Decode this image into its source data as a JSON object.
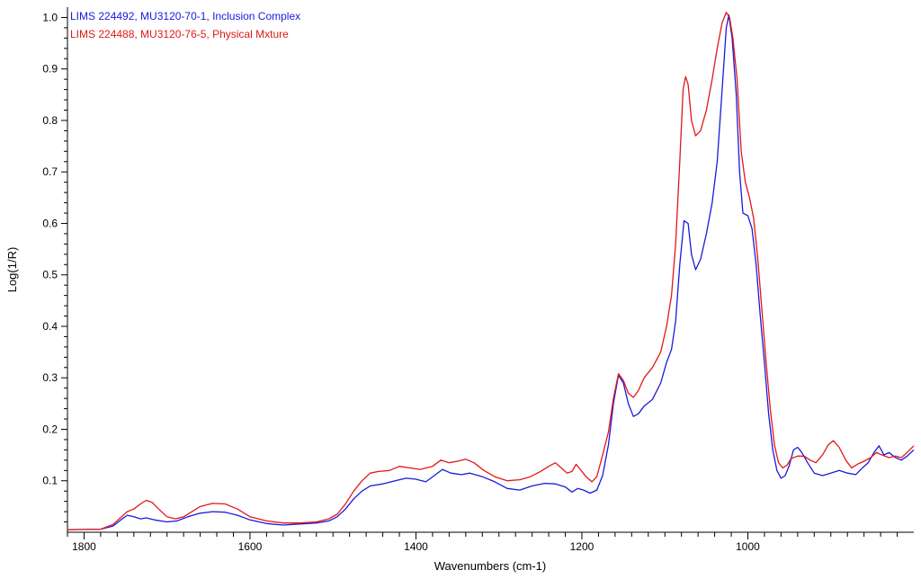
{
  "chart_data": {
    "type": "line",
    "title": "",
    "xlabel": "Wavenumbers (cm-1)",
    "ylabel": "Log(1/R)",
    "xlim": [
      1820,
      800
    ],
    "ylim": [
      0.0,
      1.02
    ],
    "x_reversed": true,
    "x_ticks": [
      1800,
      1600,
      1400,
      1200,
      1000
    ],
    "y_ticks": [
      0.1,
      0.2,
      0.3,
      0.4,
      0.5,
      0.6,
      0.7,
      0.8,
      0.9,
      1.0
    ],
    "x_tick_labels": [
      "1800",
      "1600",
      "1400",
      "1200",
      "1000"
    ],
    "y_tick_labels": [
      "0.1",
      "0.2",
      "0.3",
      "0.4",
      "0.5",
      "0.6",
      "0.7",
      "0.8",
      "0.9",
      "1.0"
    ],
    "grid": false,
    "legend_position": "top-left",
    "series": [
      {
        "name": "LIMS 224492, MU3120-70-1, Inclusion Complex",
        "color": "#1a1adc",
        "points": [
          [
            1820,
            0.005
          ],
          [
            1780,
            0.006
          ],
          [
            1765,
            0.012
          ],
          [
            1755,
            0.025
          ],
          [
            1748,
            0.033
          ],
          [
            1740,
            0.03
          ],
          [
            1732,
            0.026
          ],
          [
            1725,
            0.028
          ],
          [
            1715,
            0.024
          ],
          [
            1700,
            0.02
          ],
          [
            1688,
            0.022
          ],
          [
            1675,
            0.03
          ],
          [
            1660,
            0.037
          ],
          [
            1645,
            0.04
          ],
          [
            1630,
            0.039
          ],
          [
            1615,
            0.033
          ],
          [
            1600,
            0.024
          ],
          [
            1580,
            0.017
          ],
          [
            1560,
            0.014
          ],
          [
            1540,
            0.016
          ],
          [
            1520,
            0.018
          ],
          [
            1505,
            0.022
          ],
          [
            1495,
            0.03
          ],
          [
            1485,
            0.045
          ],
          [
            1475,
            0.065
          ],
          [
            1465,
            0.08
          ],
          [
            1455,
            0.09
          ],
          [
            1440,
            0.094
          ],
          [
            1425,
            0.1
          ],
          [
            1412,
            0.105
          ],
          [
            1400,
            0.103
          ],
          [
            1388,
            0.098
          ],
          [
            1378,
            0.11
          ],
          [
            1368,
            0.122
          ],
          [
            1358,
            0.115
          ],
          [
            1345,
            0.112
          ],
          [
            1335,
            0.115
          ],
          [
            1320,
            0.108
          ],
          [
            1305,
            0.098
          ],
          [
            1290,
            0.085
          ],
          [
            1275,
            0.082
          ],
          [
            1260,
            0.09
          ],
          [
            1245,
            0.095
          ],
          [
            1232,
            0.094
          ],
          [
            1220,
            0.088
          ],
          [
            1212,
            0.078
          ],
          [
            1205,
            0.085
          ],
          [
            1198,
            0.082
          ],
          [
            1190,
            0.076
          ],
          [
            1182,
            0.082
          ],
          [
            1175,
            0.11
          ],
          [
            1168,
            0.17
          ],
          [
            1162,
            0.25
          ],
          [
            1156,
            0.305
          ],
          [
            1150,
            0.29
          ],
          [
            1144,
            0.25
          ],
          [
            1138,
            0.225
          ],
          [
            1132,
            0.23
          ],
          [
            1125,
            0.245
          ],
          [
            1115,
            0.258
          ],
          [
            1105,
            0.29
          ],
          [
            1098,
            0.33
          ],
          [
            1092,
            0.355
          ],
          [
            1087,
            0.41
          ],
          [
            1082,
            0.52
          ],
          [
            1077,
            0.605
          ],
          [
            1072,
            0.6
          ],
          [
            1068,
            0.54
          ],
          [
            1063,
            0.51
          ],
          [
            1057,
            0.53
          ],
          [
            1050,
            0.58
          ],
          [
            1043,
            0.64
          ],
          [
            1037,
            0.72
          ],
          [
            1031,
            0.86
          ],
          [
            1026,
            0.98
          ],
          [
            1023,
            1.005
          ],
          [
            1019,
            0.96
          ],
          [
            1014,
            0.85
          ],
          [
            1010,
            0.7
          ],
          [
            1006,
            0.62
          ],
          [
            1000,
            0.615
          ],
          [
            995,
            0.59
          ],
          [
            990,
            0.52
          ],
          [
            985,
            0.42
          ],
          [
            980,
            0.33
          ],
          [
            975,
            0.23
          ],
          [
            970,
            0.16
          ],
          [
            965,
            0.12
          ],
          [
            960,
            0.105
          ],
          [
            955,
            0.11
          ],
          [
            950,
            0.13
          ],
          [
            945,
            0.16
          ],
          [
            940,
            0.165
          ],
          [
            935,
            0.155
          ],
          [
            928,
            0.135
          ],
          [
            920,
            0.115
          ],
          [
            910,
            0.11
          ],
          [
            900,
            0.115
          ],
          [
            890,
            0.12
          ],
          [
            880,
            0.115
          ],
          [
            870,
            0.112
          ],
          [
            862,
            0.125
          ],
          [
            855,
            0.135
          ],
          [
            848,
            0.155
          ],
          [
            842,
            0.168
          ],
          [
            836,
            0.15
          ],
          [
            830,
            0.155
          ],
          [
            822,
            0.145
          ],
          [
            815,
            0.14
          ],
          [
            808,
            0.148
          ],
          [
            800,
            0.16
          ]
        ]
      },
      {
        "name": "LIMS 224488, MU3120-76-5, Physical Mxture",
        "color": "#e01818",
        "points": [
          [
            1820,
            0.005
          ],
          [
            1780,
            0.006
          ],
          [
            1765,
            0.015
          ],
          [
            1755,
            0.03
          ],
          [
            1748,
            0.04
          ],
          [
            1740,
            0.045
          ],
          [
            1732,
            0.055
          ],
          [
            1725,
            0.062
          ],
          [
            1718,
            0.058
          ],
          [
            1710,
            0.045
          ],
          [
            1700,
            0.03
          ],
          [
            1690,
            0.026
          ],
          [
            1680,
            0.03
          ],
          [
            1670,
            0.04
          ],
          [
            1660,
            0.05
          ],
          [
            1645,
            0.056
          ],
          [
            1630,
            0.055
          ],
          [
            1615,
            0.045
          ],
          [
            1600,
            0.03
          ],
          [
            1580,
            0.022
          ],
          [
            1560,
            0.018
          ],
          [
            1540,
            0.018
          ],
          [
            1520,
            0.02
          ],
          [
            1505,
            0.026
          ],
          [
            1495,
            0.035
          ],
          [
            1485,
            0.055
          ],
          [
            1475,
            0.08
          ],
          [
            1465,
            0.1
          ],
          [
            1455,
            0.115
          ],
          [
            1445,
            0.118
          ],
          [
            1432,
            0.12
          ],
          [
            1420,
            0.128
          ],
          [
            1408,
            0.125
          ],
          [
            1395,
            0.122
          ],
          [
            1380,
            0.128
          ],
          [
            1370,
            0.14
          ],
          [
            1360,
            0.135
          ],
          [
            1350,
            0.138
          ],
          [
            1340,
            0.142
          ],
          [
            1330,
            0.135
          ],
          [
            1318,
            0.12
          ],
          [
            1305,
            0.108
          ],
          [
            1290,
            0.1
          ],
          [
            1275,
            0.102
          ],
          [
            1262,
            0.108
          ],
          [
            1250,
            0.118
          ],
          [
            1240,
            0.128
          ],
          [
            1232,
            0.135
          ],
          [
            1225,
            0.125
          ],
          [
            1218,
            0.115
          ],
          [
            1212,
            0.118
          ],
          [
            1207,
            0.132
          ],
          [
            1202,
            0.122
          ],
          [
            1195,
            0.108
          ],
          [
            1188,
            0.098
          ],
          [
            1182,
            0.108
          ],
          [
            1175,
            0.15
          ],
          [
            1168,
            0.195
          ],
          [
            1162,
            0.26
          ],
          [
            1156,
            0.308
          ],
          [
            1150,
            0.295
          ],
          [
            1144,
            0.27
          ],
          [
            1138,
            0.262
          ],
          [
            1132,
            0.275
          ],
          [
            1125,
            0.3
          ],
          [
            1115,
            0.32
          ],
          [
            1105,
            0.35
          ],
          [
            1098,
            0.4
          ],
          [
            1092,
            0.46
          ],
          [
            1087,
            0.56
          ],
          [
            1082,
            0.72
          ],
          [
            1078,
            0.86
          ],
          [
            1075,
            0.885
          ],
          [
            1072,
            0.87
          ],
          [
            1068,
            0.8
          ],
          [
            1063,
            0.77
          ],
          [
            1057,
            0.78
          ],
          [
            1050,
            0.82
          ],
          [
            1043,
            0.88
          ],
          [
            1037,
            0.94
          ],
          [
            1031,
            0.99
          ],
          [
            1026,
            1.01
          ],
          [
            1022,
            1.0
          ],
          [
            1018,
            0.96
          ],
          [
            1013,
            0.88
          ],
          [
            1008,
            0.74
          ],
          [
            1003,
            0.68
          ],
          [
            998,
            0.65
          ],
          [
            993,
            0.61
          ],
          [
            988,
            0.53
          ],
          [
            983,
            0.43
          ],
          [
            978,
            0.33
          ],
          [
            973,
            0.24
          ],
          [
            968,
            0.17
          ],
          [
            963,
            0.135
          ],
          [
            958,
            0.125
          ],
          [
            953,
            0.13
          ],
          [
            948,
            0.143
          ],
          [
            940,
            0.148
          ],
          [
            932,
            0.148
          ],
          [
            925,
            0.14
          ],
          [
            918,
            0.135
          ],
          [
            910,
            0.15
          ],
          [
            903,
            0.17
          ],
          [
            897,
            0.178
          ],
          [
            890,
            0.165
          ],
          [
            882,
            0.14
          ],
          [
            875,
            0.125
          ],
          [
            868,
            0.132
          ],
          [
            860,
            0.138
          ],
          [
            852,
            0.145
          ],
          [
            845,
            0.155
          ],
          [
            838,
            0.15
          ],
          [
            830,
            0.145
          ],
          [
            822,
            0.148
          ],
          [
            815,
            0.145
          ],
          [
            808,
            0.155
          ],
          [
            800,
            0.168
          ]
        ]
      }
    ]
  }
}
